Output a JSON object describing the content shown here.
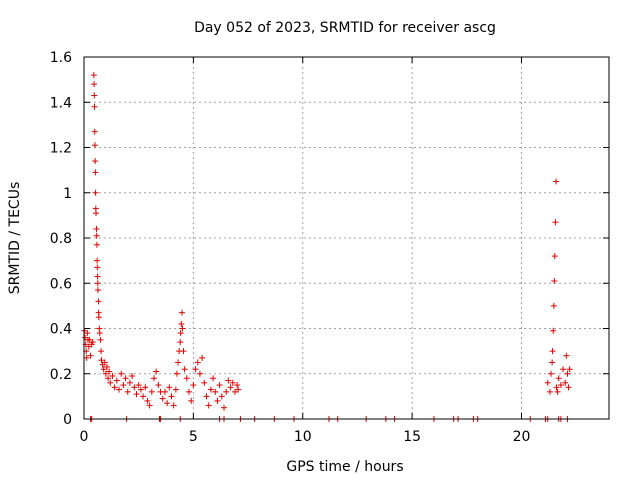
{
  "chart_data": {
    "type": "scatter",
    "title": "Day 052 of 2023, SRMTID for receiver ascg",
    "xlabel": "GPS time / hours",
    "ylabel": "SRMTID / TECUs",
    "xlim": [
      0,
      24
    ],
    "ylim": [
      0,
      1.6
    ],
    "xticks": [
      0,
      5,
      10,
      15,
      20
    ],
    "xtick_labels": [
      "0",
      "5",
      "10",
      "15",
      "20"
    ],
    "yticks": [
      0,
      0.2,
      0.4,
      0.6,
      0.8,
      1.0,
      1.2,
      1.4,
      1.6
    ],
    "ytick_labels": [
      "0",
      "0.2",
      "0.4",
      "0.6",
      "0.8",
      "1",
      "1.2",
      "1.4",
      "1.6"
    ],
    "grid": true,
    "marker": "plus",
    "marker_color": "#e00000",
    "series": [
      {
        "name": "SRMTID",
        "points": [
          [
            0.02,
            0.39
          ],
          [
            0.05,
            0.36
          ],
          [
            0.08,
            0.33
          ],
          [
            0.1,
            0.3
          ],
          [
            0.12,
            0.27
          ],
          [
            0.15,
            0.38
          ],
          [
            0.18,
            0.35
          ],
          [
            0.22,
            0.32
          ],
          [
            0.25,
            0.35
          ],
          [
            0.3,
            0.28
          ],
          [
            0.35,
            0.33
          ],
          [
            0.4,
            0.34
          ],
          [
            0.45,
            1.52
          ],
          [
            0.46,
            1.48
          ],
          [
            0.47,
            1.43
          ],
          [
            0.48,
            1.38
          ],
          [
            0.49,
            1.27
          ],
          [
            0.5,
            1.21
          ],
          [
            0.51,
            1.14
          ],
          [
            0.52,
            1.09
          ],
          [
            0.53,
            1.0
          ],
          [
            0.54,
            0.93
          ],
          [
            0.55,
            0.91
          ],
          [
            0.57,
            0.84
          ],
          [
            0.58,
            0.81
          ],
          [
            0.59,
            0.77
          ],
          [
            0.6,
            0.7
          ],
          [
            0.61,
            0.67
          ],
          [
            0.62,
            0.63
          ],
          [
            0.63,
            0.6
          ],
          [
            0.64,
            0.57
          ],
          [
            0.66,
            0.52
          ],
          [
            0.67,
            0.47
          ],
          [
            0.68,
            0.45
          ],
          [
            0.7,
            0.4
          ],
          [
            0.72,
            0.38
          ],
          [
            0.75,
            0.35
          ],
          [
            0.78,
            0.3
          ],
          [
            0.8,
            0.26
          ],
          [
            0.85,
            0.24
          ],
          [
            0.9,
            0.22
          ],
          [
            0.95,
            0.25
          ],
          [
            1.0,
            0.2
          ],
          [
            1.05,
            0.23
          ],
          [
            1.1,
            0.18
          ],
          [
            1.15,
            0.21
          ],
          [
            1.2,
            0.16
          ],
          [
            1.3,
            0.19
          ],
          [
            1.4,
            0.14
          ],
          [
            1.5,
            0.17
          ],
          [
            1.6,
            0.13
          ],
          [
            1.7,
            0.2
          ],
          [
            1.8,
            0.15
          ],
          [
            1.9,
            0.18
          ],
          [
            2.0,
            0.12
          ],
          [
            2.1,
            0.16
          ],
          [
            2.2,
            0.19
          ],
          [
            2.3,
            0.14
          ],
          [
            2.4,
            0.11
          ],
          [
            2.5,
            0.15
          ],
          [
            2.6,
            0.13
          ],
          [
            2.7,
            0.1
          ],
          [
            2.8,
            0.14
          ],
          [
            2.9,
            0.08
          ],
          [
            3.0,
            0.06
          ],
          [
            3.1,
            0.12
          ],
          [
            3.2,
            0.18
          ],
          [
            3.3,
            0.21
          ],
          [
            3.4,
            0.15
          ],
          [
            3.5,
            0.12
          ],
          [
            3.6,
            0.09
          ],
          [
            3.7,
            0.12
          ],
          [
            3.8,
            0.07
          ],
          [
            3.9,
            0.14
          ],
          [
            4.0,
            0.1
          ],
          [
            4.1,
            0.06
          ],
          [
            4.2,
            0.13
          ],
          [
            4.25,
            0.2
          ],
          [
            4.3,
            0.25
          ],
          [
            4.35,
            0.3
          ],
          [
            4.4,
            0.34
          ],
          [
            4.42,
            0.38
          ],
          [
            4.45,
            0.42
          ],
          [
            4.48,
            0.47
          ],
          [
            4.5,
            0.4
          ],
          [
            4.55,
            0.3
          ],
          [
            4.6,
            0.22
          ],
          [
            4.7,
            0.18
          ],
          [
            4.8,
            0.12
          ],
          [
            4.9,
            0.08
          ],
          [
            5.0,
            0.15
          ],
          [
            5.1,
            0.22
          ],
          [
            5.2,
            0.25
          ],
          [
            5.3,
            0.2
          ],
          [
            5.4,
            0.27
          ],
          [
            5.5,
            0.16
          ],
          [
            5.6,
            0.1
          ],
          [
            5.7,
            0.06
          ],
          [
            5.8,
            0.13
          ],
          [
            5.9,
            0.18
          ],
          [
            6.0,
            0.12
          ],
          [
            6.1,
            0.08
          ],
          [
            6.2,
            0.15
          ],
          [
            6.3,
            0.1
          ],
          [
            6.4,
            0.05
          ],
          [
            6.5,
            0.12
          ],
          [
            6.6,
            0.17
          ],
          [
            6.7,
            0.14
          ],
          [
            6.8,
            0.16
          ],
          [
            6.9,
            0.12
          ],
          [
            7.0,
            0.15
          ],
          [
            7.05,
            0.13
          ],
          [
            21.2,
            0.16
          ],
          [
            21.3,
            0.12
          ],
          [
            21.35,
            0.2
          ],
          [
            21.4,
            0.25
          ],
          [
            21.42,
            0.3
          ],
          [
            21.45,
            0.39
          ],
          [
            21.48,
            0.5
          ],
          [
            21.5,
            0.61
          ],
          [
            21.52,
            0.72
          ],
          [
            21.55,
            0.87
          ],
          [
            21.58,
            1.05
          ],
          [
            21.6,
            0.14
          ],
          [
            21.65,
            0.12
          ],
          [
            21.7,
            0.18
          ],
          [
            21.8,
            0.15
          ],
          [
            21.9,
            0.22
          ],
          [
            22.0,
            0.16
          ],
          [
            22.05,
            0.28
          ],
          [
            22.1,
            0.2
          ],
          [
            22.15,
            0.14
          ],
          [
            22.2,
            0.22
          ]
        ]
      }
    ],
    "zero_points_x": [
      0.3,
      0.35,
      1.95,
      3.45,
      3.5,
      4.4,
      6.2,
      6.4,
      7.15,
      7.8,
      8.7,
      9.6,
      11.2,
      11.6,
      12.9,
      13.8,
      14.2,
      16.0,
      16.9,
      17.1,
      17.8,
      18.0,
      20.4,
      21.1,
      21.2,
      21.7,
      21.8,
      22.1
    ]
  }
}
